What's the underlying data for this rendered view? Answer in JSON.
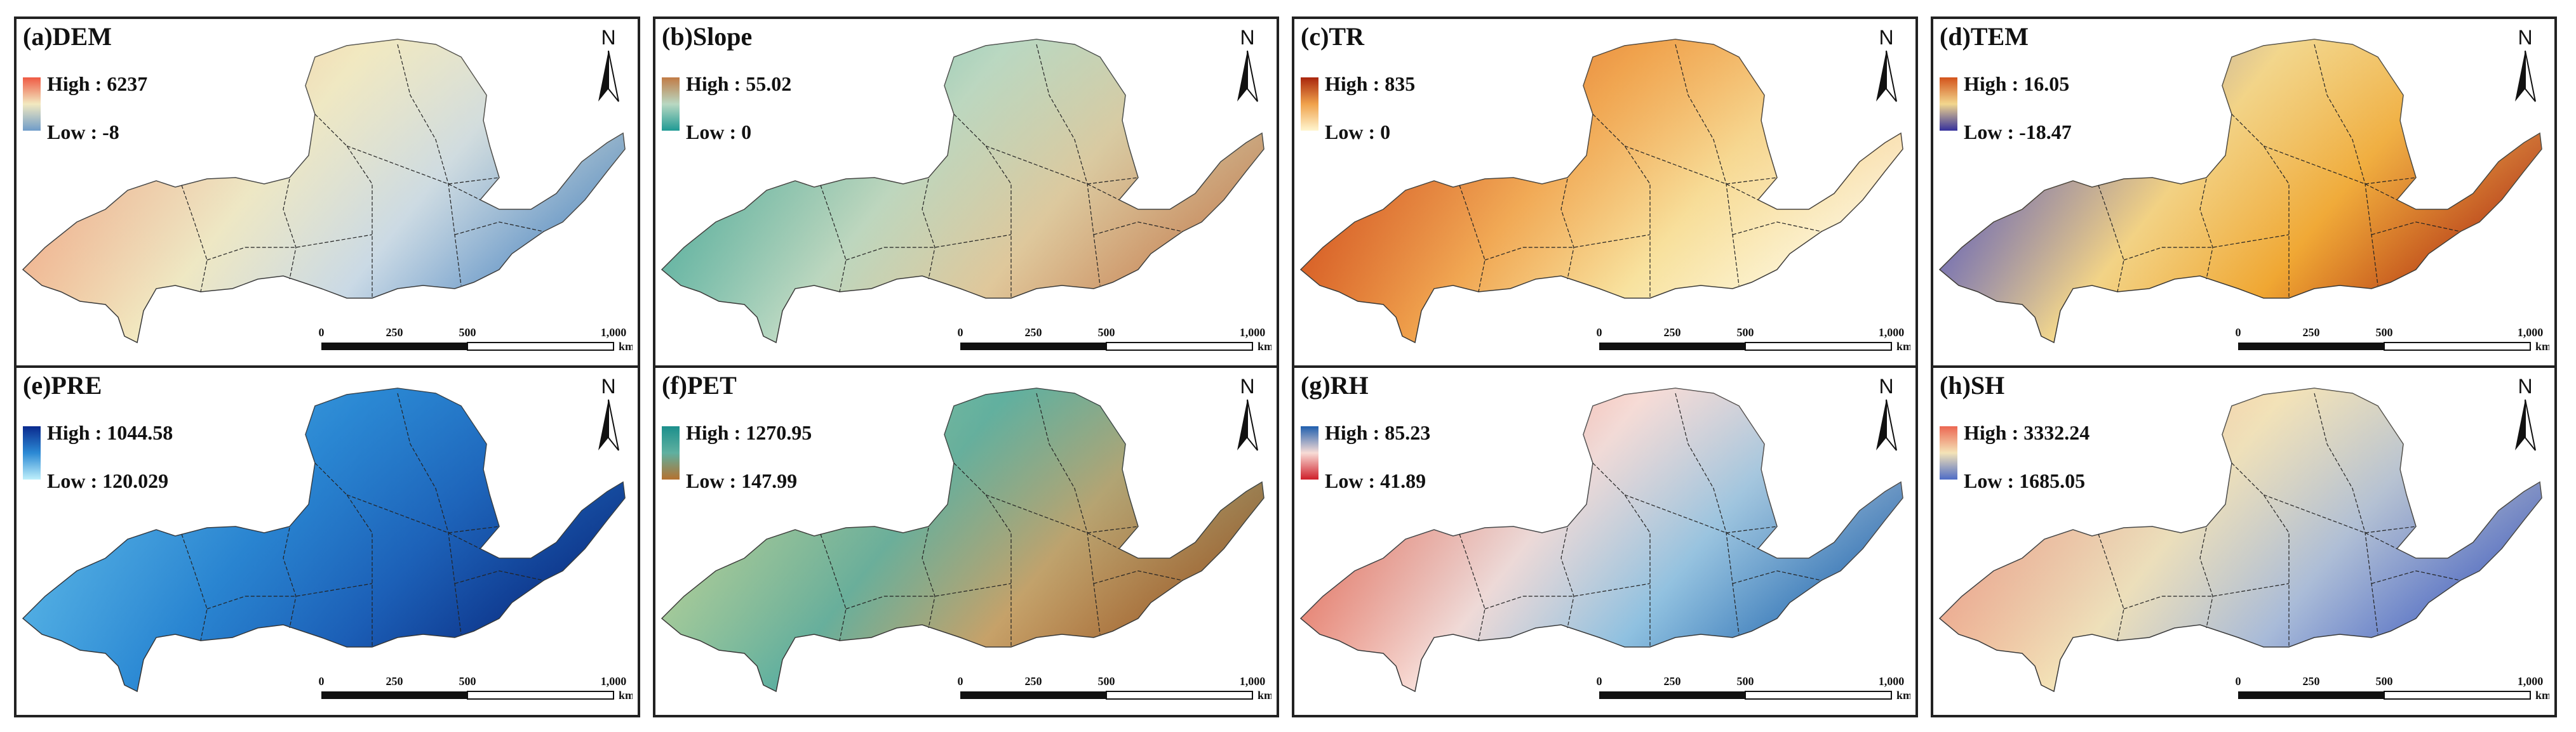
{
  "panels": [
    {
      "title": "(a)DEM",
      "high": "High : 6237",
      "low": "Low : -8",
      "colors": [
        "#e8483c",
        "#f4b28a",
        "#f2e9c0",
        "#c9d9e6",
        "#5b8fc4"
      ],
      "ramp_high": "#ef5a44",
      "ramp_low": "#6f9cc9"
    },
    {
      "title": "(b)Slope",
      "high": "High : 55.02",
      "low": "Low : 0",
      "colors": [
        "#1a8f8c",
        "#57b2a3",
        "#b9d8c2",
        "#e0c79a",
        "#c8875a"
      ],
      "ramp_high": "#c17b46",
      "ramp_low": "#1f9a94"
    },
    {
      "title": "(c)TR",
      "high": "High : 835",
      "low": "Low : 0",
      "colors": [
        "#9d2a08",
        "#d4511a",
        "#f0a24c",
        "#f8e3a0",
        "#fdf8e1"
      ],
      "ramp_high": "#a9260c",
      "ramp_low": "#fff6d0"
    },
    {
      "title": "(d)TEM",
      "high": "High : 16.05",
      "low": "Low : -18.47",
      "colors": [
        "#2c2b8f",
        "#6a6cc0",
        "#f2d78e",
        "#f0a631",
        "#b53a16"
      ],
      "ramp_high": "#d3531b",
      "ramp_low": "#35309c"
    },
    {
      "title": "(e)PRE",
      "high": "High : 1044.58",
      "low": "Low : 120.029",
      "colors": [
        "#a9e3f5",
        "#58b7e8",
        "#2b89d4",
        "#1b5db5",
        "#0b2d82"
      ],
      "ramp_high": "#0a2a8e",
      "ramp_low": "#bff0fb"
    },
    {
      "title": "(f)PET",
      "high": "High : 1270.95",
      "low": "Low : 147.99",
      "colors": [
        "#e7d9a1",
        "#a4cf9e",
        "#5fb0a0",
        "#c8a168",
        "#a0612d"
      ],
      "ramp_high": "#1c8f8c",
      "ramp_low": "#b5712f"
    },
    {
      "title": "(g)RH",
      "high": "High : 85.23",
      "low": "Low : 41.89",
      "colors": [
        "#d6302f",
        "#ef7d68",
        "#f8dcd6",
        "#8dc0e0",
        "#2d6fb3"
      ],
      "ramp_high": "#1f5fae",
      "ramp_low": "#cf1f2a"
    },
    {
      "title": "(h)SH",
      "high": "High : 3332.24",
      "low": "Low : 1685.05",
      "colors": [
        "#e36049",
        "#f3a98a",
        "#f4e3b7",
        "#a7bad9",
        "#4c67c2"
      ],
      "ramp_high": "#ec6752",
      "ramp_low": "#4e6cc6"
    }
  ],
  "scale": {
    "ticks": [
      "0",
      "250",
      "500",
      "1,000"
    ],
    "unit": "km"
  },
  "north_label": "N"
}
